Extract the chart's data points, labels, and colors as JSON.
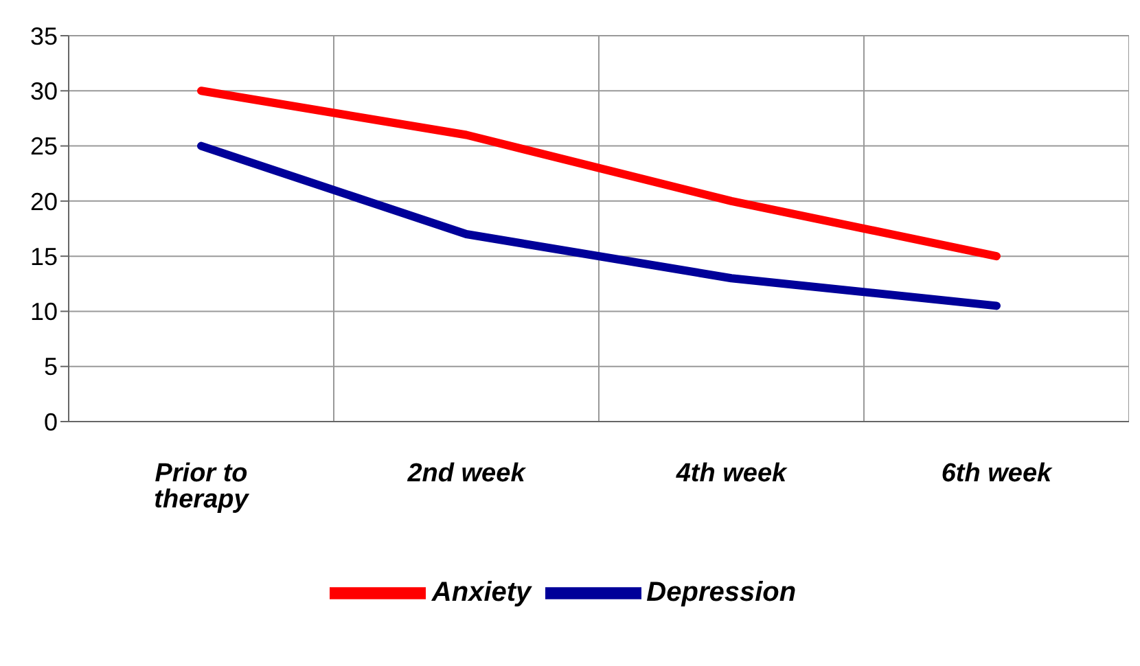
{
  "chart_data": {
    "type": "line",
    "categories": [
      "Prior to therapy",
      "2nd week",
      "4th week",
      "6th week"
    ],
    "series": [
      {
        "name": "Anxiety",
        "color": "#ff0000",
        "values": [
          30,
          26,
          20,
          15
        ]
      },
      {
        "name": "Depression",
        "color": "#000099",
        "values": [
          25,
          17,
          13,
          10.5
        ]
      }
    ],
    "ylim": [
      0,
      35
    ],
    "yticks": [
      0,
      5,
      10,
      15,
      20,
      25,
      30,
      35
    ],
    "grid": true,
    "legend": "bottom",
    "marker": "none",
    "line_style": "solid"
  }
}
